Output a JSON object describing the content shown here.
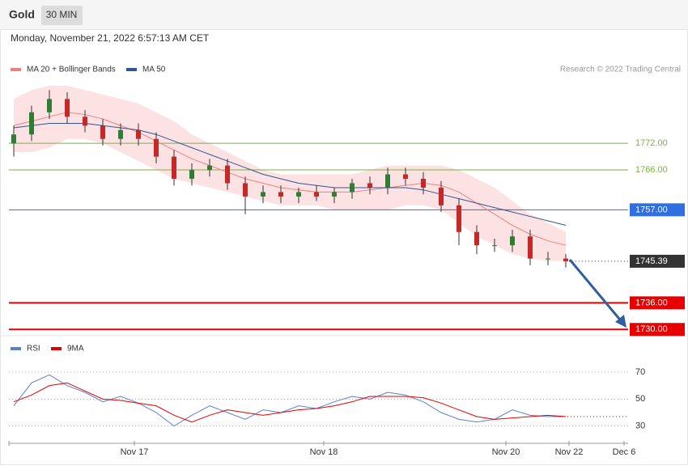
{
  "header": {
    "symbol": "Gold",
    "interval": "30 MIN",
    "timestamp": "Monday, November 21, 2022 6:57:13 AM CET"
  },
  "chart_data": [
    {
      "type": "candlestick",
      "legend": [
        {
          "name": "MA 20 + Bollinger Bands",
          "color": "#f08080"
        },
        {
          "name": "MA 50",
          "color": "#2f5597"
        }
      ],
      "credit": "Research © 2022 Trading Central",
      "ylim": [
        1729.5,
        1787
      ],
      "x_labels": [
        "Nov 17",
        "Nov 18",
        "Nov 20",
        "Nov 22",
        "Dec 6"
      ],
      "open": [
        1772,
        1774,
        1779,
        1782,
        1778,
        1776,
        1773,
        1775,
        1773,
        1769,
        1764,
        1766,
        1767,
        1763,
        1760,
        1761,
        1760,
        1761,
        1760,
        1761,
        1763,
        1762,
        1765,
        1764,
        1762,
        1758,
        1752,
        1749,
        1749,
        1751,
        1746,
        1746
      ],
      "high": [
        1776,
        1780.5,
        1784,
        1783.5,
        1779.5,
        1777.5,
        1776.5,
        1776.5,
        1774.5,
        1770.5,
        1767.5,
        1768.5,
        1768.5,
        1764.5,
        1762.5,
        1762.5,
        1762,
        1762.5,
        1762,
        1764,
        1764.5,
        1766.5,
        1766.5,
        1765.5,
        1763.5,
        1759.5,
        1753.5,
        1750.5,
        1752.5,
        1752.5,
        1747.5,
        1747
      ],
      "low": [
        1769,
        1772.5,
        1777.5,
        1776.5,
        1774.5,
        1771.5,
        1771.5,
        1771.5,
        1767.5,
        1762.5,
        1762.5,
        1764.5,
        1761.5,
        1756,
        1758.5,
        1758.5,
        1758.5,
        1759,
        1758.5,
        1759.5,
        1760.5,
        1760.5,
        1762.5,
        1760.5,
        1756.5,
        1749,
        1747,
        1747.5,
        1747.5,
        1744.5,
        1744.5,
        1744
      ],
      "close": [
        1774,
        1779,
        1782,
        1778,
        1776,
        1773,
        1775,
        1773,
        1769,
        1764,
        1766,
        1767,
        1763,
        1760,
        1761,
        1760,
        1761,
        1760,
        1761,
        1763,
        1762,
        1765,
        1764,
        1762,
        1758,
        1752,
        1749,
        1749,
        1751,
        1746,
        1746,
        1745.39
      ],
      "ma20": [
        1776,
        1777,
        1778,
        1779,
        1778.5,
        1777.5,
        1776,
        1774.5,
        1772.5,
        1770.5,
        1768.5,
        1767,
        1765.5,
        1764,
        1763,
        1762,
        1761.5,
        1761,
        1761,
        1761,
        1761.5,
        1762,
        1762.5,
        1763,
        1762.5,
        1761,
        1758.5,
        1756,
        1753.5,
        1751.5,
        1750,
        1749
      ],
      "ma50": [
        1775.5,
        1776,
        1776.5,
        1776.5,
        1776.5,
        1776,
        1775.5,
        1775,
        1774,
        1772.5,
        1771,
        1769.5,
        1768,
        1766.5,
        1765,
        1764,
        1763,
        1762.5,
        1762,
        1762,
        1762,
        1762,
        1762,
        1761.5,
        1760.5,
        1759.5,
        1758.5,
        1757.5,
        1756.5,
        1755.5,
        1754.5,
        1753.5
      ],
      "bb_upper": [
        1782,
        1784,
        1785,
        1785,
        1784,
        1783,
        1782,
        1781,
        1779,
        1777,
        1774,
        1772,
        1770,
        1768,
        1766,
        1765,
        1765,
        1765,
        1765,
        1765,
        1766,
        1767,
        1767,
        1767,
        1767,
        1766,
        1764,
        1762,
        1759,
        1756,
        1754,
        1752
      ],
      "bb_lower": [
        1770,
        1770,
        1771,
        1773,
        1773,
        1772,
        1770,
        1768,
        1766,
        1764,
        1763,
        1762,
        1761,
        1760,
        1759,
        1758,
        1758,
        1758,
        1757,
        1757,
        1757,
        1757,
        1758,
        1758,
        1757,
        1754,
        1751,
        1749,
        1747,
        1746,
        1745.5,
        1745.5
      ],
      "levels": [
        {
          "value": 1772,
          "label": "1772.00",
          "color": "#7cb342",
          "style": "text"
        },
        {
          "value": 1766,
          "label": "1766.00",
          "color": "#7cb342",
          "style": "text"
        },
        {
          "value": 1757,
          "label": "1757.00",
          "color": "#2f6fe0",
          "style": "box"
        },
        {
          "value": 1745.39,
          "color": "#333333",
          "style": "current"
        },
        {
          "value": 1736,
          "label": "1736.00",
          "color": "#e60000",
          "style": "box"
        },
        {
          "value": 1730,
          "label": "1730.00",
          "color": "#e60000",
          "style": "box"
        }
      ]
    },
    {
      "type": "line",
      "ylim": [
        19,
        79
      ],
      "yticks": [
        70,
        50,
        30
      ],
      "series": [
        {
          "name": "RSI",
          "color": "#5b7fd6",
          "values": [
            45,
            62,
            68,
            60,
            55,
            48,
            52,
            47,
            40,
            30,
            38,
            45,
            40,
            35,
            42,
            40,
            45,
            43,
            48,
            52,
            50,
            55,
            53,
            48,
            40,
            35,
            33,
            35,
            42,
            38,
            37,
            37
          ]
        },
        {
          "name": "9MA",
          "color": "#e60000",
          "values": [
            48,
            53,
            60,
            62,
            56,
            50,
            49,
            47,
            45,
            38,
            33,
            38,
            42,
            40,
            38,
            40,
            42,
            43,
            45,
            48,
            52,
            52,
            52,
            51,
            47,
            42,
            37,
            35,
            36,
            37,
            38,
            37
          ]
        }
      ]
    }
  ]
}
